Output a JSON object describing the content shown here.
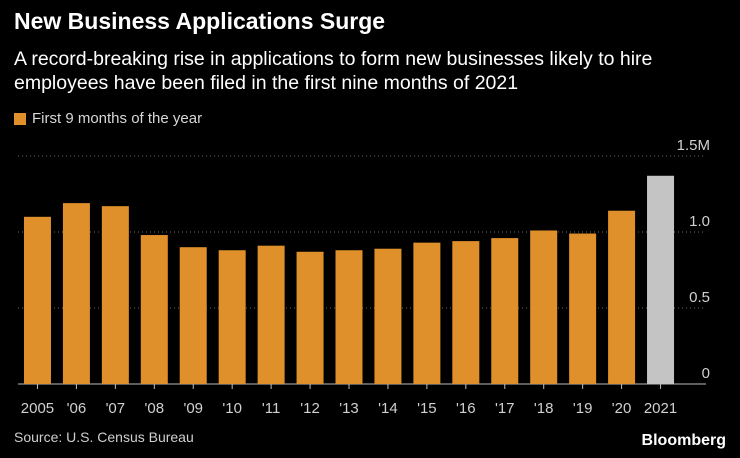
{
  "header": {
    "title": "New Business Applications Surge",
    "subtitle": "A record-breaking rise in applications to form new businesses likely to hire employees have been filed in the first nine months of 2021"
  },
  "legend": {
    "label": "First 9 months of the year"
  },
  "footer": {
    "source": "Source: U.S. Census Bureau",
    "brand": "Bloomberg"
  },
  "colors": {
    "bar": "#E0902B",
    "highlight": "#C4C4C4",
    "grid": "#6a6a6a",
    "tick_text": "#d0d0d0"
  },
  "chart_data": {
    "type": "bar",
    "title": "New Business Applications Surge",
    "xlabel": "",
    "ylabel": "",
    "ylim": [
      0,
      1.5
    ],
    "yticks": [
      {
        "value": 1.5,
        "label": "1.5M"
      },
      {
        "value": 1.0,
        "label": "1.0"
      },
      {
        "value": 0.5,
        "label": "0.5"
      },
      {
        "value": 0,
        "label": "0"
      }
    ],
    "grid": true,
    "legend": "top-left",
    "series": [
      {
        "name": "First 9 months of the year",
        "values": [
          1.1,
          1.19,
          1.17,
          0.98,
          0.9,
          0.88,
          0.91,
          0.87,
          0.88,
          0.89,
          0.93,
          0.94,
          0.96,
          1.01,
          0.99,
          1.14,
          1.37
        ]
      }
    ],
    "categories": [
      "2005",
      "'06",
      "'07",
      "'08",
      "'09",
      "'10",
      "'11",
      "'12",
      "'13",
      "'14",
      "'15",
      "'16",
      "'17",
      "'18",
      "'19",
      "'20",
      "2021"
    ],
    "highlight_category": "2021"
  }
}
